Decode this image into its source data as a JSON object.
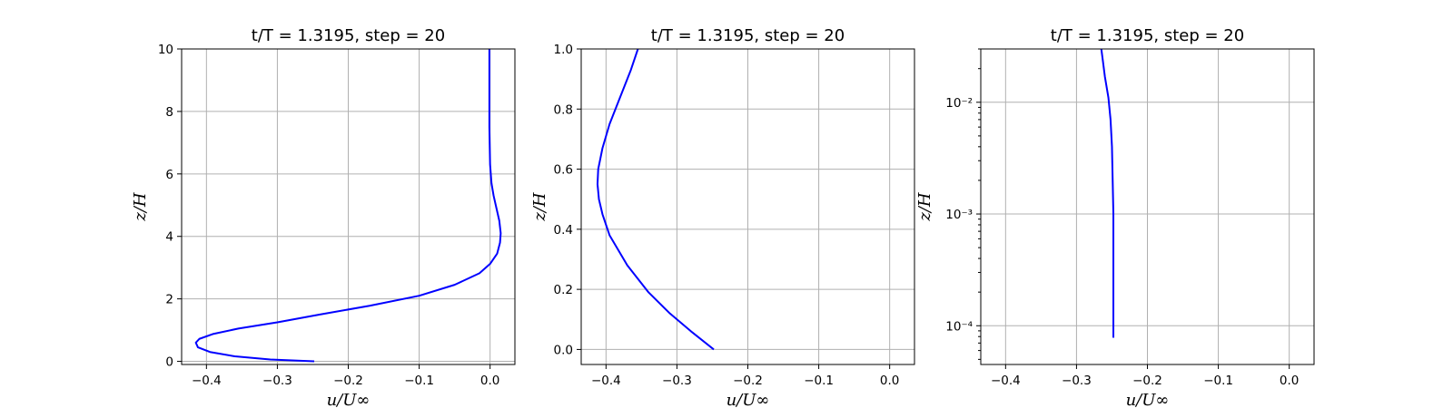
{
  "chart_data": [
    {
      "type": "line",
      "title": "t/T = 1.3195, step = 20",
      "xlabel": "u/U∞",
      "ylabel": "z/H",
      "xlim": [
        -0.435,
        0.035
      ],
      "ylim": [
        -0.1,
        10
      ],
      "yscale": "linear",
      "xticks": [
        -0.4,
        -0.3,
        -0.2,
        -0.1,
        0.0
      ],
      "xtick_labels": [
        "−0.4",
        "−0.3",
        "−0.2",
        "−0.1",
        "0.0"
      ],
      "yticks": [
        0,
        2,
        4,
        6,
        8,
        10
      ],
      "ytick_labels": [
        "0",
        "2",
        "4",
        "6",
        "8",
        "10"
      ],
      "grid": true,
      "color": "#0000ff",
      "series": [
        {
          "x": [
            -0.248,
            -0.31,
            -0.36,
            -0.395,
            -0.412,
            -0.415,
            -0.41,
            -0.39,
            -0.355,
            -0.3,
            -0.24,
            -0.17,
            -0.1,
            -0.05,
            -0.015,
            0.0,
            0.01,
            0.014,
            0.015,
            0.013,
            0.009,
            0.005,
            0.002,
            0.0,
            -0.001,
            -0.001,
            -0.001
          ],
          "y": [
            0.0,
            0.06,
            0.16,
            0.3,
            0.45,
            0.6,
            0.72,
            0.88,
            1.05,
            1.25,
            1.5,
            1.78,
            2.1,
            2.45,
            2.82,
            3.12,
            3.45,
            3.8,
            4.1,
            4.5,
            4.9,
            5.3,
            5.7,
            6.3,
            7.5,
            8.8,
            10.0
          ]
        }
      ]
    },
    {
      "type": "line",
      "title": "t/T = 1.3195, step = 20",
      "xlabel": "u/U∞",
      "ylabel": "z/H",
      "xlim": [
        -0.435,
        0.035
      ],
      "ylim": [
        -0.05,
        1.0
      ],
      "yscale": "linear",
      "xticks": [
        -0.4,
        -0.3,
        -0.2,
        -0.1,
        0.0
      ],
      "xtick_labels": [
        "−0.4",
        "−0.3",
        "−0.2",
        "−0.1",
        "0.0"
      ],
      "yticks": [
        0.0,
        0.2,
        0.4,
        0.6,
        0.8,
        1.0
      ],
      "ytick_labels": [
        "0.0",
        "0.2",
        "0.4",
        "0.6",
        "0.8",
        "1.0"
      ],
      "grid": true,
      "color": "#0000ff",
      "series": [
        {
          "x": [
            -0.248,
            -0.28,
            -0.31,
            -0.34,
            -0.37,
            -0.395,
            -0.405,
            -0.41,
            -0.412,
            -0.411,
            -0.405,
            -0.395,
            -0.38,
            -0.365,
            -0.355
          ],
          "y": [
            0.0,
            0.06,
            0.12,
            0.19,
            0.28,
            0.38,
            0.45,
            0.5,
            0.55,
            0.6,
            0.67,
            0.75,
            0.84,
            0.93,
            1.0
          ]
        }
      ]
    },
    {
      "type": "line",
      "title": "t/T = 1.3195, step = 20",
      "xlabel": "u/U∞",
      "ylabel": "z/H",
      "xlim": [
        -0.435,
        0.035
      ],
      "ylim": [
        4.5e-05,
        0.03
      ],
      "yscale": "log",
      "xticks": [
        -0.4,
        -0.3,
        -0.2,
        -0.1,
        0.0
      ],
      "xtick_labels": [
        "−0.4",
        "−0.3",
        "−0.2",
        "−0.1",
        "0.0"
      ],
      "yticks": [
        0.0001,
        0.001,
        0.01
      ],
      "ytick_labels": [
        "10⁻⁴",
        "10⁻³",
        "10⁻²"
      ],
      "grid": true,
      "color": "#0000ff",
      "series": [
        {
          "x": [
            -0.248,
            -0.248,
            -0.248,
            -0.248,
            -0.249,
            -0.25,
            -0.252,
            -0.255,
            -0.26,
            -0.263,
            -0.265
          ],
          "y": [
            7.8e-05,
            0.0002,
            0.0005,
            0.001,
            0.002,
            0.004,
            0.007,
            0.011,
            0.017,
            0.024,
            0.03
          ]
        }
      ]
    }
  ]
}
